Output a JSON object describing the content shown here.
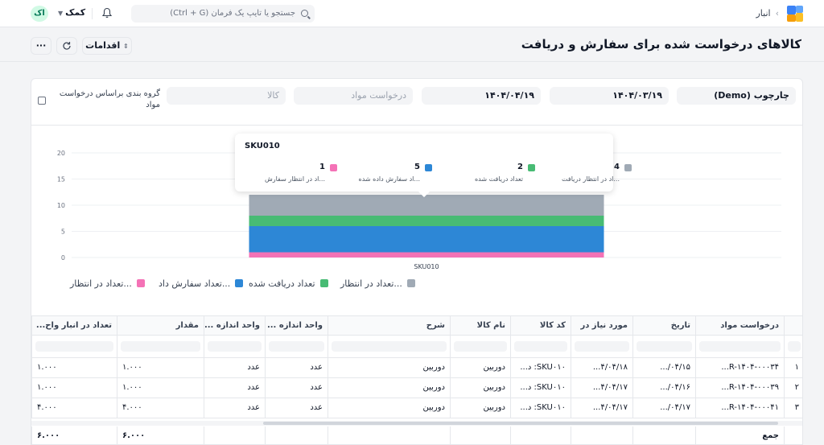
{
  "topbar": {
    "breadcrumb": "انبار",
    "search_placeholder": "جستجو یا تایپ یک فرمان (Ctrl + G)",
    "help_label": "کمک",
    "avatar_initials": "اک"
  },
  "header": {
    "title": "کالاهای درخواست شده برای سفارش و دریافت",
    "actions_label": "اقدامات"
  },
  "filters": {
    "company": "چارچوب (Demo)",
    "from_date": "۱۴۰۴/۰۳/۱۹",
    "to_date": "۱۴۰۴/۰۴/۱۹",
    "material_request_placeholder": "درخواست مواد",
    "item_placeholder": "کالا",
    "group_by_label": "گروه بندی براساس درخواست مواد"
  },
  "chart_data": {
    "type": "bar",
    "stacked": true,
    "categories": [
      "SKU010"
    ],
    "ylim": [
      0,
      20
    ],
    "yticks": [
      0,
      5,
      10,
      15,
      20
    ],
    "grid": true,
    "legend_position": "bottom",
    "series": [
      {
        "name": "تعداد در انتظار سفارش",
        "legend_label": "...تعداد در انتظار",
        "tooltip_label": "...اد در انتظار سفارش",
        "color": "#f472b6",
        "values": [
          1
        ]
      },
      {
        "name": "تعداد سفارش داده شده",
        "legend_label": "...تعداد سفارش داد",
        "tooltip_label": "...اد سفارش داده شده",
        "color": "#2d87d6",
        "values": [
          5
        ]
      },
      {
        "name": "تعداد دریافت شده",
        "legend_label": "تعداد دریافت شده",
        "tooltip_label": "تعداد دریافت شده",
        "color": "#48bb74",
        "values": [
          2
        ]
      },
      {
        "name": "تعداد در انتظار دریافت",
        "legend_label": "...تعداد در انتظار",
        "tooltip_label": "...اد در انتظار دریافت",
        "color": "#a0aab5",
        "values": [
          4
        ]
      }
    ],
    "tooltip": {
      "title": "SKU010"
    }
  },
  "table": {
    "columns": [
      "درخواست مواد",
      "تاریخ",
      "مورد نیاز در",
      "کد کالا",
      "نام کالا",
      "شرح",
      "واحد اندازه ...",
      "واحد اندازه ...",
      "مقدار",
      "تعداد در انبار واح..."
    ],
    "rows": [
      {
        "idx": "۱",
        "cells": [
          "R-۱۴۰۴-۰۰۰۳۴...",
          "۰۴/۱۵/...",
          "۴/۰۴/۱۸...",
          "SKU۰۱۰: د...",
          "دوربین",
          "دوربین",
          "عدد",
          "عدد",
          "۱.۰۰۰",
          "۱.۰۰۰"
        ]
      },
      {
        "idx": "۲",
        "cells": [
          "R-۱۴۰۴-۰۰۰۳۹...",
          "۰۴/۱۶/...",
          "۴/۰۴/۱۷...",
          "SKU۰۱۰: د...",
          "دوربین",
          "دوربین",
          "عدد",
          "عدد",
          "۱.۰۰۰",
          "۱.۰۰۰"
        ]
      },
      {
        "idx": "۳",
        "cells": [
          "R-۱۴۰۴-۰۰۰۴۱...",
          "۰۴/۱۷/...",
          "۴/۰۴/۱۷...",
          "SKU۰۱۰: د...",
          "دوربین",
          "دوربین",
          "عدد",
          "عدد",
          "۴.۰۰۰",
          "۴.۰۰۰"
        ]
      }
    ],
    "footer": {
      "label": "جمع",
      "qty_total": "۶.۰۰۰",
      "stock_total": "۶.۰۰۰"
    }
  }
}
